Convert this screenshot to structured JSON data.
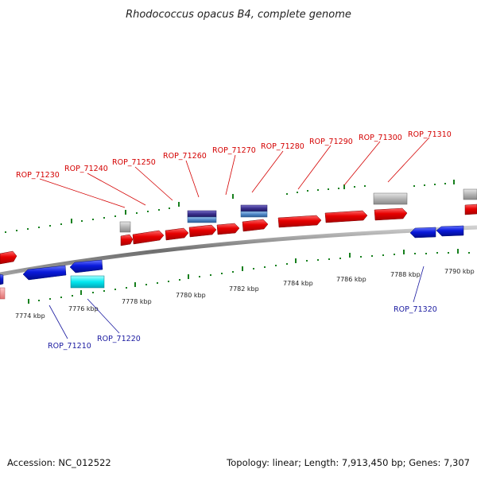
{
  "title": "Rhodococcus opacus B4, complete genome",
  "footer": {
    "accession": "Accession: NC_012522",
    "summary": "Topology: linear; Length: 7,913,450 bp; Genes: 7,307"
  },
  "colors": {
    "forward": "#e60000",
    "reverse": "#0a1adc",
    "rna": "#b4b4b4",
    "cyan": "#00e8f0",
    "purple": "#3a2f8c",
    "steel": "#4f86c6",
    "pink": "#f29090",
    "tick": "#17801e",
    "backbone": "#7a7a7a",
    "label_fwd": "#d40000",
    "label_rev": "#1a1aa0"
  },
  "kbp_labels": [
    "7774 kbp",
    "7776 kbp",
    "7778 kbp",
    "7780 kbp",
    "7782 kbp",
    "7784 kbp",
    "7786 kbp",
    "7788 kbp",
    "7790 kbp"
  ],
  "gene_labels_forward": [
    "ROP_71230",
    "ROP_71240",
    "ROP_71250",
    "ROP_71260",
    "ROP_71270",
    "ROP_71280",
    "ROP_71290",
    "ROP_71300",
    "ROP_71310"
  ],
  "gene_labels_reverse": [
    "ROP_71210",
    "ROP_71220",
    "ROP_71320"
  ]
}
